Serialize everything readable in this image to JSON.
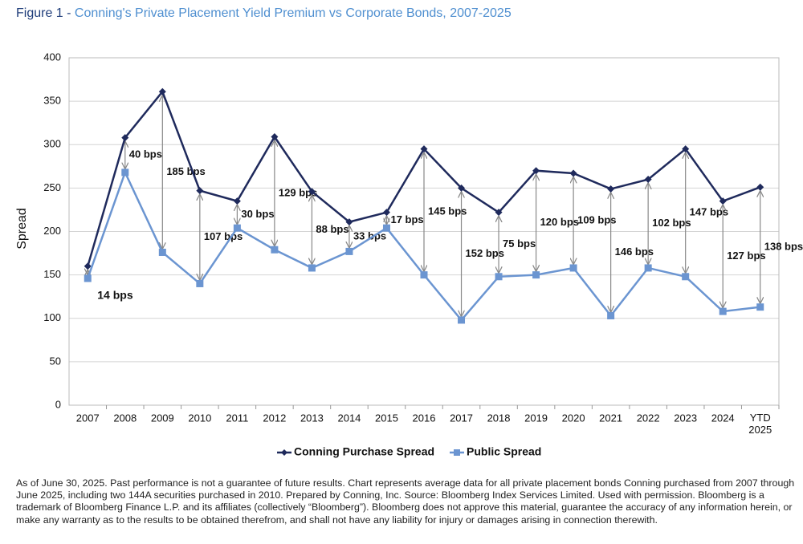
{
  "chart_data": {
    "type": "line",
    "figure_label": "Figure 1 -",
    "title": "Conning's Private Placement Yield Premium vs Corporate Bonds, 2007-2025",
    "y_label": "Spread",
    "categories": [
      "2007",
      "2008",
      "2009",
      "2010",
      "2011",
      "2012",
      "2013",
      "2014",
      "2015",
      "2016",
      "2017",
      "2018",
      "2019",
      "2020",
      "2021",
      "2022",
      "2023",
      "2024",
      "YTD 2025"
    ],
    "series": [
      {
        "name": "Conning Purchase Spread",
        "color": "#1f2a5c",
        "marker": "diamond",
        "values": [
          160,
          308,
          361,
          247,
          235,
          309,
          246,
          211,
          222,
          295,
          250,
          222,
          270,
          267,
          249,
          260,
          295,
          235,
          251
        ]
      },
      {
        "name": "Public Spread",
        "color": "#6b95d1",
        "marker": "square",
        "values": [
          146,
          268,
          176,
          140,
          204,
          179,
          158,
          177,
          204,
          150,
          98,
          148,
          150,
          158,
          103,
          158,
          148,
          108,
          113
        ]
      }
    ],
    "annotations": [
      "14 bps",
      "40 bps",
      "185 bps",
      "107 bps",
      "30 bps",
      "129 bps",
      "88 bps",
      "33 bps",
      "17 bps",
      "145 bps",
      "152 bps",
      "75 bps",
      "120 bps",
      "109 bps",
      "146 bps",
      "102 bps",
      "147 bps",
      "127 bps",
      "138 bps"
    ],
    "ylim": [
      0,
      400
    ],
    "yticks": [
      0,
      50,
      100,
      150,
      200,
      250,
      300,
      350,
      400
    ],
    "grid": true,
    "legend": "bottom",
    "footnote": "As of June 30, 2025. Past performance is not a guarantee of future results. Chart represents average data for all private placement bonds Conning purchased from 2007 through June 2025, including two 144A securities purchased in 2010. Prepared by Conning, Inc.  Source: Bloomberg Index Services Limited. Used with permission. Bloomberg is a trademark of Bloomberg Finance L.P. and its affiliates (collectively “Bloomberg”). Bloomberg does not approve this material, guarantee the accuracy of any information herein, or make any warranty as to the results to be obtained therefrom, and shall not have any liability for injury or damages arising in connection therewith."
  }
}
